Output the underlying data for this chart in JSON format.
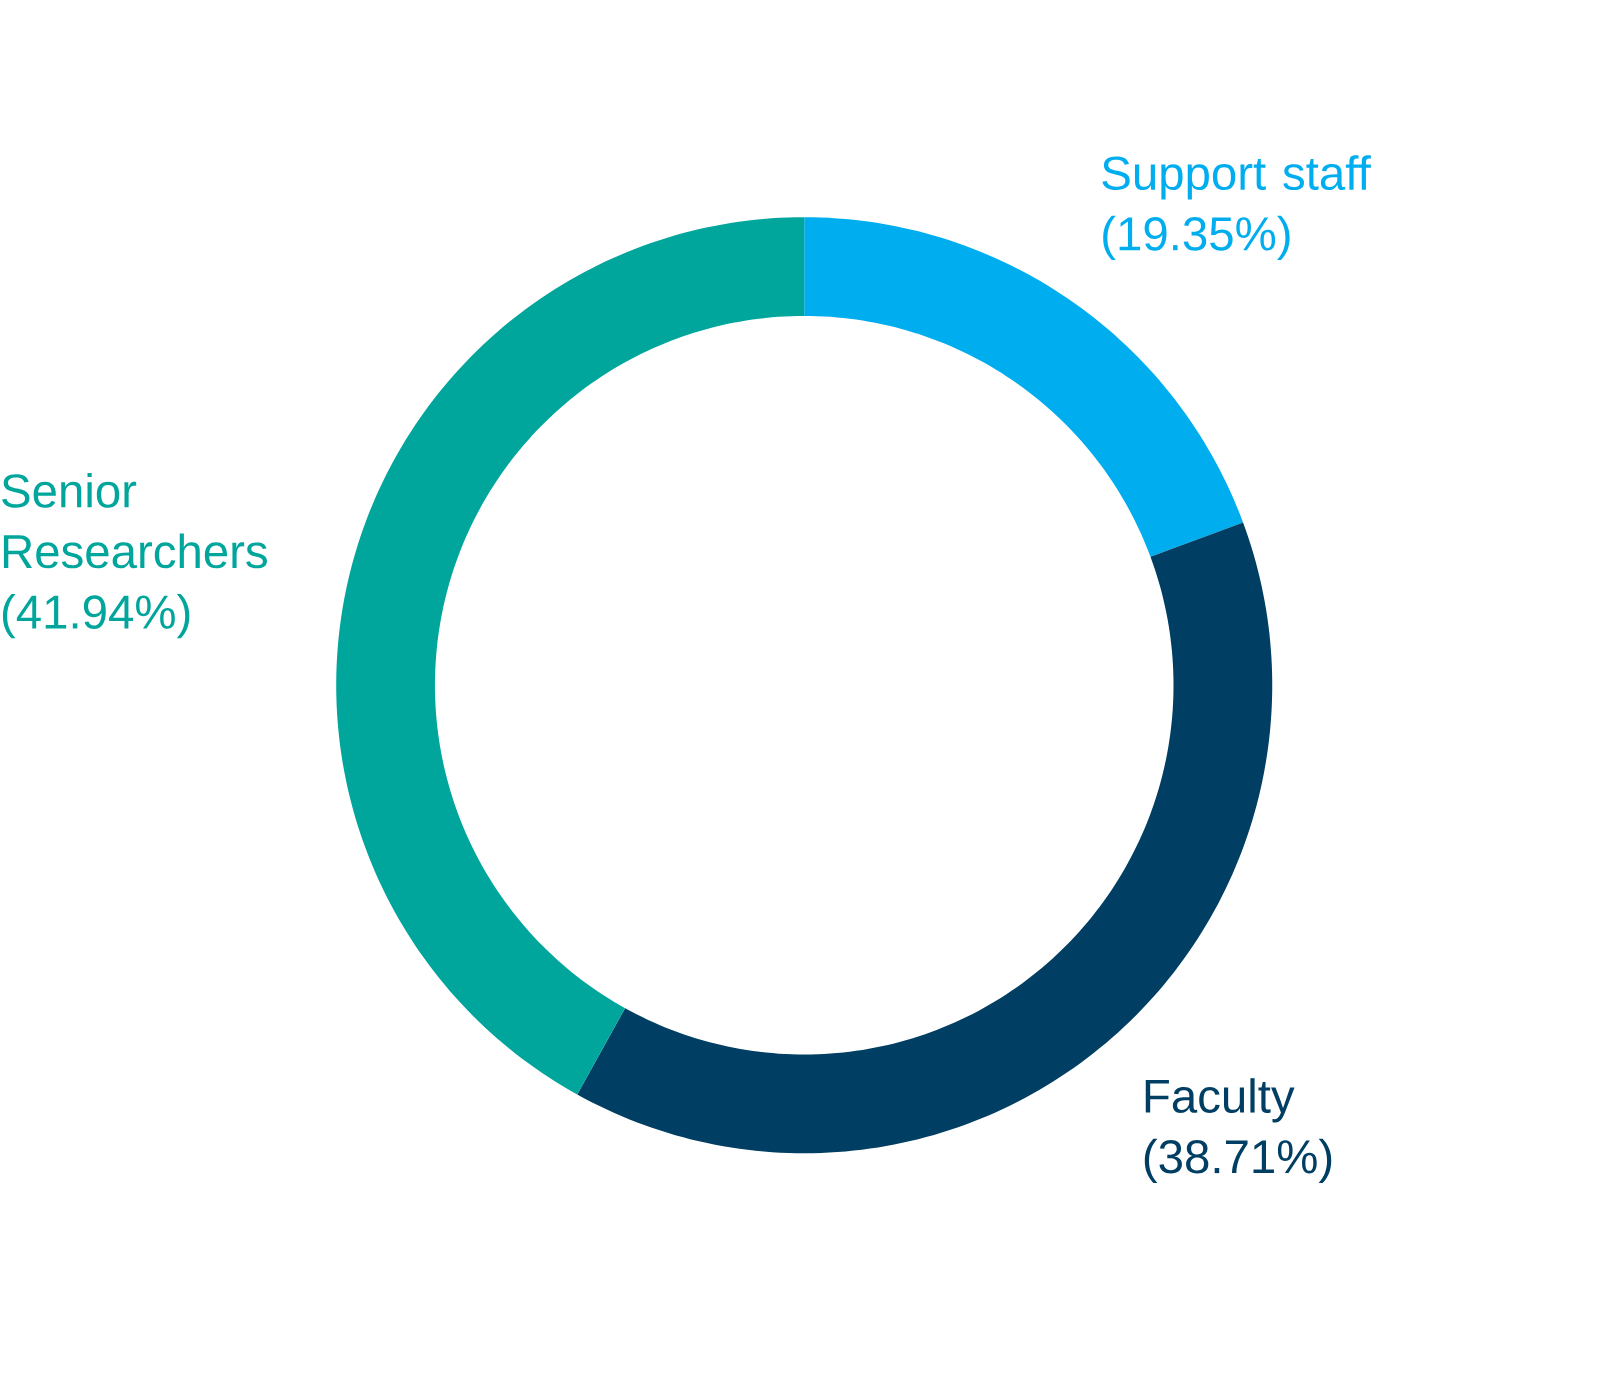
{
  "chart_data": {
    "type": "donut",
    "categories": [
      "Support staff",
      "Faculty",
      "Senior Researchers"
    ],
    "values": [
      19.35,
      38.71,
      41.94
    ],
    "value_labels": [
      "(19.35%)",
      "(38.71%)",
      "(41.94%)"
    ],
    "colors": [
      "#00aeef",
      "#003f63",
      "#00a69c"
    ]
  }
}
